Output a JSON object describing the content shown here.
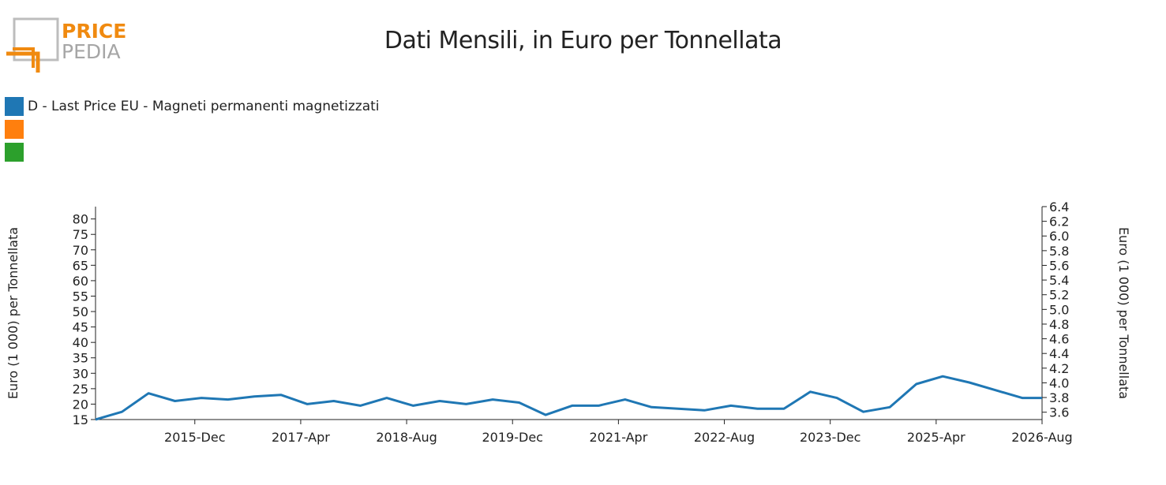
{
  "logo": {
    "line1": "PRICE",
    "line2": "PEDIA"
  },
  "colors": {
    "blue": "#1f77b4",
    "orange": "#ff7f0e",
    "green": "#2ca02c",
    "logo_orange": "#f08a10",
    "logo_grey": "#a6a6a6"
  },
  "chart_data": {
    "type": "line",
    "title": "Dati Mensili, in Euro per Tonnellata",
    "ylabel": "Euro (1 000) per Tonnellata",
    "y2label": "Euro (1 000) per Tonnellata",
    "ylim": [
      15,
      84
    ],
    "y2lim": [
      3.5,
      6.4
    ],
    "xlim": [
      "2014-09",
      "2026-08"
    ],
    "x_ticks": [
      "2015-Dec",
      "2017-Apr",
      "2018-Aug",
      "2019-Dec",
      "2021-Apr",
      "2022-Aug",
      "2023-Dec",
      "2025-Apr",
      "2026-Aug"
    ],
    "y_ticks": [
      15,
      20,
      25,
      30,
      35,
      40,
      45,
      50,
      55,
      60,
      65,
      70,
      75,
      80
    ],
    "y2_ticks": [
      3.6,
      3.8,
      4.0,
      4.2,
      4.4,
      4.6,
      4.8,
      5.0,
      5.2,
      5.4,
      5.6,
      5.8,
      6.0,
      6.2,
      6.4
    ],
    "legend_position": "top-left",
    "series": [
      {
        "name": "D - Last Price EU - Magneti permanenti magnetizzati",
        "color": "#1f77b4",
        "axis": "left",
        "points": [
          [
            "2014-09",
            15.0
          ],
          [
            "2015-01",
            17.5
          ],
          [
            "2015-05",
            23.5
          ],
          [
            "2015-09",
            21.0
          ],
          [
            "2016-01",
            22.0
          ],
          [
            "2016-05",
            21.5
          ],
          [
            "2016-09",
            22.5
          ],
          [
            "2017-01",
            23.0
          ],
          [
            "2017-05",
            20.0
          ],
          [
            "2017-09",
            21.0
          ],
          [
            "2018-01",
            19.5
          ],
          [
            "2018-05",
            22.0
          ],
          [
            "2018-09",
            19.5
          ],
          [
            "2019-01",
            21.0
          ],
          [
            "2019-05",
            20.0
          ],
          [
            "2019-09",
            21.5
          ],
          [
            "2020-01",
            20.5
          ],
          [
            "2020-05",
            16.5
          ],
          [
            "2020-09",
            19.5
          ],
          [
            "2021-01",
            19.5
          ],
          [
            "2021-05",
            21.5
          ],
          [
            "2021-09",
            19.0
          ],
          [
            "2022-01",
            18.5
          ],
          [
            "2022-05",
            18.0
          ],
          [
            "2022-09",
            19.5
          ],
          [
            "2023-01",
            18.5
          ],
          [
            "2023-05",
            18.5
          ],
          [
            "2023-09",
            24.0
          ],
          [
            "2024-01",
            22.0
          ],
          [
            "2024-05",
            17.5
          ],
          [
            "2024-09",
            19.0
          ],
          [
            "2025-01",
            26.5
          ],
          [
            "2025-05",
            29.0
          ],
          [
            "2025-09",
            27.0
          ],
          [
            "2026-01",
            24.5
          ],
          [
            "2026-05",
            22.0
          ],
          [
            "2026-08",
            22.0
          ]
        ]
      }
    ]
  }
}
